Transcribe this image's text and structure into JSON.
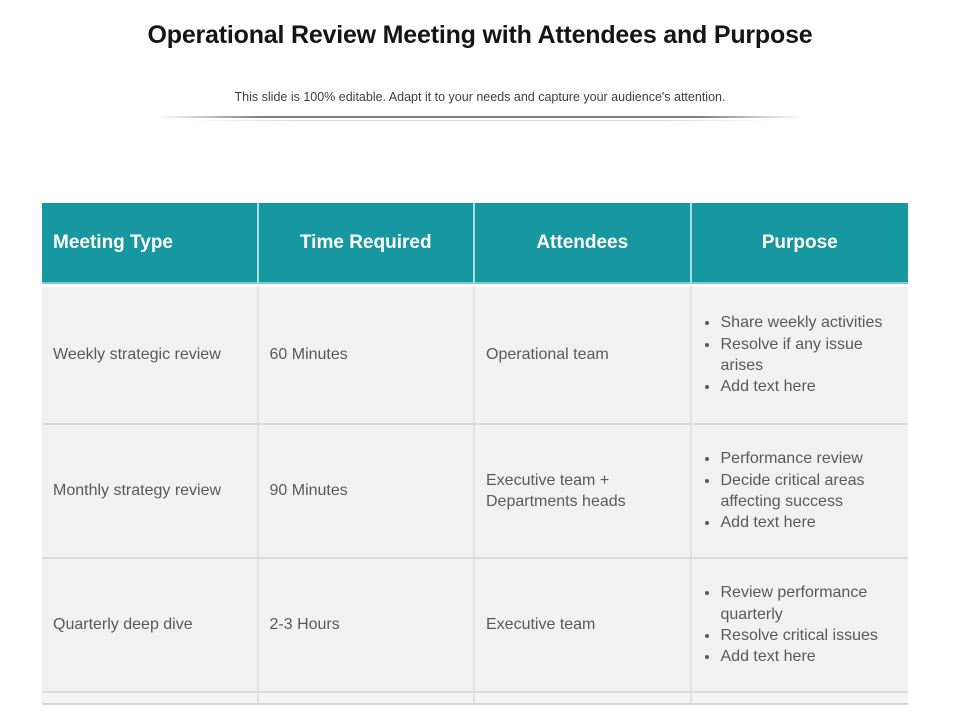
{
  "slide": {
    "title": "Operational Review Meeting with Attendees and Purpose",
    "subtitle": "This slide is 100% editable. Adapt it to your needs and capture your audience's attention."
  },
  "colors": {
    "header_bg": "#17979F",
    "header_text": "#FFFFFF",
    "header_divider": "#79CBD2",
    "row_bg": "#F1F1F1",
    "cell_border": "#E0E0E0",
    "body_text": "#595959",
    "title_text": "#151515"
  },
  "table": {
    "headers": [
      "Meeting Type",
      "Time Required",
      "Attendees",
      "Purpose"
    ],
    "rows": [
      {
        "meeting_type": "Weekly strategic review",
        "time_required": "60 Minutes",
        "attendees": "Operational team",
        "purpose": [
          "Share weekly activities",
          "Resolve if any issue arises",
          "Add text here"
        ]
      },
      {
        "meeting_type": "Monthly strategy review",
        "time_required": "90 Minutes",
        "attendees": "Executive team + Departments heads",
        "purpose": [
          "Performance review",
          "Decide critical areas affecting success",
          "Add text here"
        ]
      },
      {
        "meeting_type": "Quarterly deep dive",
        "time_required": "2-3 Hours",
        "attendees": "Executive team",
        "purpose": [
          "Review performance quarterly",
          "Resolve critical issues",
          "Add text here"
        ]
      }
    ]
  }
}
